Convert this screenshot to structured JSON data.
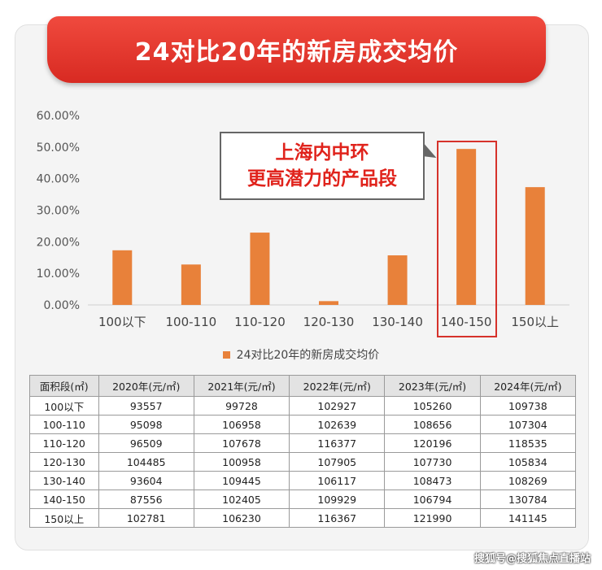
{
  "chart_data": {
    "type": "bar",
    "title": "24对比20年的新房成交均价",
    "categories": [
      "100以下",
      "100-110",
      "110-120",
      "120-130",
      "130-140",
      "140-150",
      "150以上"
    ],
    "series": [
      {
        "name": "24对比20年的新房成交均价",
        "values": [
          17.3,
          12.8,
          22.9,
          1.2,
          15.7,
          49.4,
          37.3
        ]
      }
    ],
    "yticks": [
      "0.00%",
      "10.00%",
      "20.00%",
      "30.00%",
      "40.00%",
      "50.00%",
      "60.00%"
    ],
    "ylim": [
      0,
      60
    ],
    "bar_color": "#e8813a",
    "legend_position": "bottom",
    "grid": false,
    "highlight_category": "140-150",
    "annotation": [
      "上海内中环",
      "更高潜力的产品段"
    ]
  },
  "table": {
    "headers": [
      "面积段(㎡)",
      "2020年(元/㎡)",
      "2021年(元/㎡)",
      "2022年(元/㎡)",
      "2023年(元/㎡)",
      "2024年(元/㎡)"
    ],
    "rows": [
      [
        "100以下",
        "93557",
        "99728",
        "102927",
        "105260",
        "109738"
      ],
      [
        "100-110",
        "95098",
        "106958",
        "102639",
        "108656",
        "107304"
      ],
      [
        "110-120",
        "96509",
        "107678",
        "116377",
        "120196",
        "118535"
      ],
      [
        "120-130",
        "104485",
        "100958",
        "107905",
        "107730",
        "105834"
      ],
      [
        "130-140",
        "93604",
        "109445",
        "106117",
        "108473",
        "108269"
      ],
      [
        "140-150",
        "87556",
        "102405",
        "109929",
        "106794",
        "130784"
      ],
      [
        "150以上",
        "102781",
        "106230",
        "116367",
        "121990",
        "141145"
      ]
    ]
  },
  "watermark": "搜狐号@搜狐焦点直播站",
  "colors": {
    "banner": "#e0231c",
    "bar": "#e8813a",
    "highlight": "#d6322b"
  }
}
